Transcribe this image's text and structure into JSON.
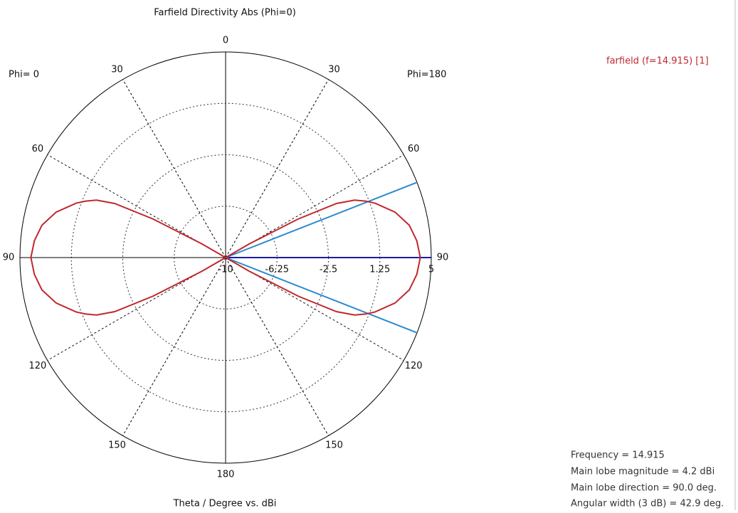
{
  "chart_data": {
    "type": "polar",
    "title": "Farfield Directivity Abs (Phi=0)",
    "left_label": "Phi=  0",
    "right_label": "Phi=180",
    "xlabel": "Theta / Degree vs. dBi",
    "x": [
      0,
      30,
      55,
      60,
      62,
      64,
      66,
      68,
      70,
      75,
      80,
      85,
      90,
      95,
      100,
      105,
      110,
      112,
      114,
      116,
      118,
      120,
      125,
      150,
      180
    ],
    "series": [
      {
        "name": "farfield (f=14.915) [1]",
        "color": "#c0282d",
        "values": [
          -10,
          -10,
          -10,
          -8,
          -4,
          -1,
          0.3,
          1,
          1.6,
          2.8,
          3.6,
          4.0,
          4.2,
          4.0,
          3.6,
          2.8,
          1.6,
          1,
          0.3,
          -1,
          -4,
          -8,
          -10,
          -10,
          -10
        ]
      }
    ],
    "xticks": [
      0,
      30,
      60,
      90,
      120,
      150,
      180
    ],
    "ylim": [
      -10,
      5
    ],
    "yticks": [
      -10,
      -6.25,
      -2.5,
      1.25,
      5
    ],
    "main_lobe": {
      "direction": 90,
      "width": 42.9,
      "direction_color": "#1c1ca8",
      "width_color": "#2a8ad0"
    },
    "info": [
      "Frequency = 14.915",
      "Main lobe magnitude =   4.2 dBi",
      "Main lobe direction =  90.0 deg.",
      "Angular width (3 dB) =  42.9 deg."
    ]
  }
}
